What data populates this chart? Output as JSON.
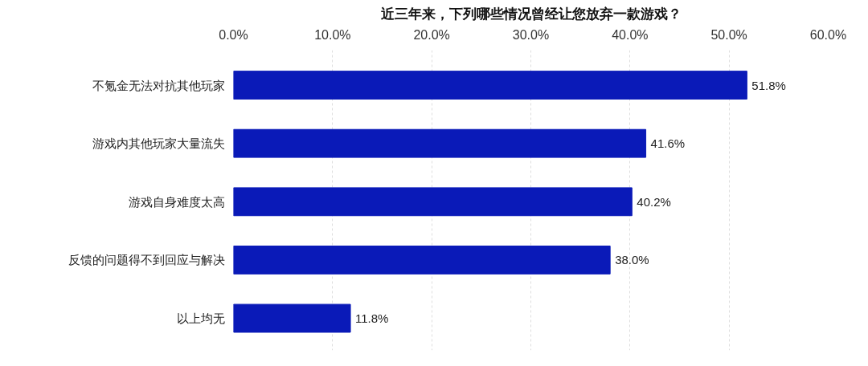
{
  "chart_data": {
    "type": "bar",
    "orientation": "horizontal",
    "title": "近三年来，下列哪些情况曾经让您放弃一款游戏？",
    "categories": [
      "不氪金无法对抗其他玩家",
      "游戏内其他玩家大量流失",
      "游戏自身难度太高",
      "反馈的问题得不到回应与解决",
      "以上均无"
    ],
    "values": [
      51.8,
      41.6,
      40.2,
      38.0,
      11.8
    ],
    "value_labels": [
      "51.8%",
      "41.6%",
      "40.2%",
      "38.0%",
      "11.8%"
    ],
    "color": "#0a1ab8",
    "xlim": [
      0,
      60
    ],
    "xticks": [
      {
        "value": 0,
        "label": "0.0%"
      },
      {
        "value": 10,
        "label": "10.0%"
      },
      {
        "value": 20,
        "label": "20.0%"
      },
      {
        "value": 30,
        "label": "30.0%"
      },
      {
        "value": 40,
        "label": "40.0%"
      },
      {
        "value": 50,
        "label": "50.0%"
      },
      {
        "value": 60,
        "label": "60.0%"
      }
    ],
    "grid": "x"
  }
}
